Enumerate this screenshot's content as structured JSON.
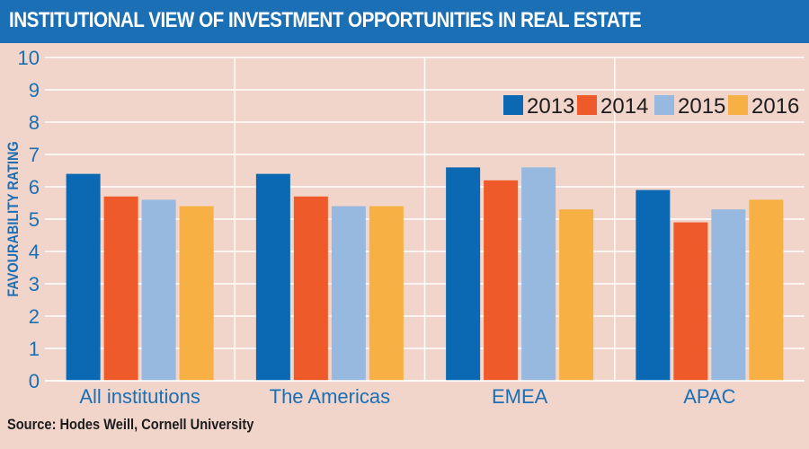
{
  "header": {
    "title": "INSTITUTIONAL VIEW OF INVESTMENT OPPORTUNITIES IN REAL ESTATE"
  },
  "footer": {
    "source": "Source: Hodes Weill, Cornell University"
  },
  "chart_data": {
    "type": "bar",
    "title": "INSTITUTIONAL VIEW OF INVESTMENT OPPORTUNITIES IN REAL ESTATE",
    "xlabel": "",
    "ylabel": "FAVOURABILITY RATING",
    "ylim": [
      0,
      10
    ],
    "yticks": [
      "0",
      "1",
      "2",
      "3",
      "4",
      "5",
      "6",
      "7",
      "8",
      "9",
      "10"
    ],
    "grid": true,
    "legend": "top-right",
    "categories": [
      "All institutions",
      "The Americas",
      "EMEA",
      "APAC"
    ],
    "series": [
      {
        "name": "2013",
        "color": "#0b68b3",
        "values": [
          6.4,
          6.4,
          6.6,
          5.9
        ]
      },
      {
        "name": "2014",
        "color": "#ef5a2a",
        "values": [
          5.7,
          5.7,
          6.2,
          4.9
        ]
      },
      {
        "name": "2015",
        "color": "#97b8df",
        "values": [
          5.6,
          5.4,
          6.6,
          5.3
        ]
      },
      {
        "name": "2016",
        "color": "#f7b044",
        "values": [
          5.4,
          5.4,
          5.3,
          5.6
        ]
      }
    ]
  }
}
